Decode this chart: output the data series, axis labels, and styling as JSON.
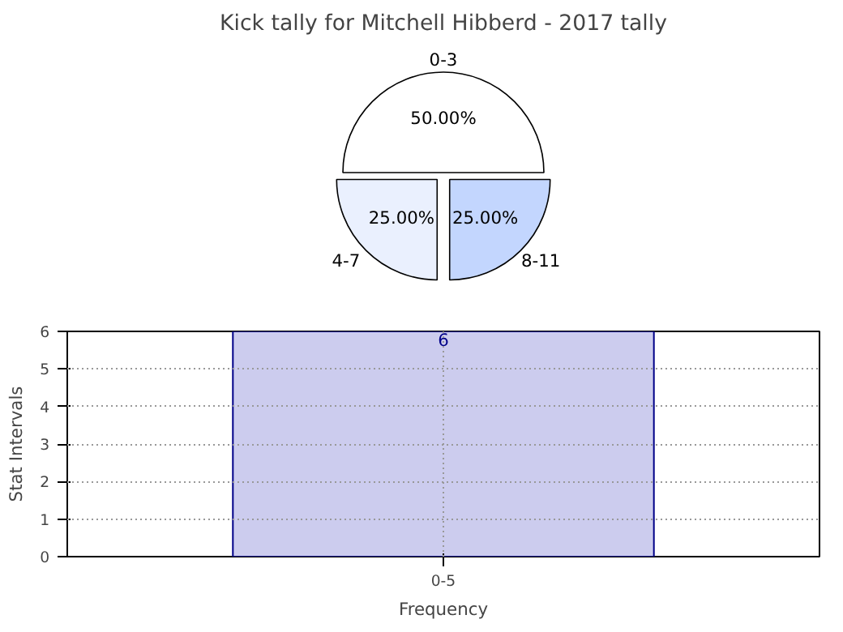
{
  "chart_data": [
    {
      "type": "pie",
      "title": "Kick tally for Mitchell Hibberd - 2017 tally",
      "categories": [
        "0-3",
        "4-7",
        "8-11"
      ],
      "values": [
        50,
        25,
        25
      ],
      "colors": [
        "#ffffff",
        "#eaf0fe",
        "#c3d6fe"
      ],
      "value_labels": [
        "50.00%",
        "25.00%",
        "25.00%"
      ]
    },
    {
      "type": "bar",
      "categories": [
        "0-5"
      ],
      "values": [
        6
      ],
      "color": "#ccccee",
      "xlabel": "Frequency",
      "ylabel": "Stat Intervals",
      "ylim": [
        0,
        6
      ],
      "yticks": [
        0,
        1,
        2,
        3,
        4,
        5,
        6
      ],
      "grid": true,
      "data_labels": true
    }
  ]
}
